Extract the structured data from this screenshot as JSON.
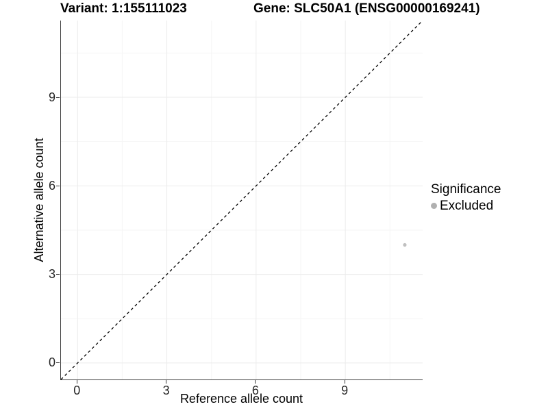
{
  "chart_data": {
    "type": "scatter",
    "titles": [
      "Variant: 1:155111023",
      "Gene: SLC50A1 (ENSG00000169241)"
    ],
    "xlabel": "Reference allele count",
    "ylabel": "Alternative allele count",
    "xlim": [
      -0.56,
      11.6
    ],
    "ylim": [
      -0.56,
      11.6
    ],
    "xticks": [
      0,
      3,
      6,
      9
    ],
    "yticks": [
      0,
      3,
      6,
      9
    ],
    "minor_gridlines": [
      1.5,
      4.5,
      7.5,
      10.5
    ],
    "grid": "major and minor gridlines, very light gray on white panel",
    "reference_line": {
      "type": "diagonal y=x",
      "slope": 1,
      "intercept": 0,
      "style": "dashed",
      "color": "#000000"
    },
    "series": [
      {
        "name": "Excluded",
        "color": "#c0c0c0",
        "points": [
          {
            "x": 11,
            "y": 4
          }
        ]
      }
    ],
    "legend": {
      "title": "Significance",
      "position": "right",
      "entries": [
        {
          "label": "Excluded",
          "color": "#b0b0b0"
        }
      ]
    }
  },
  "colors": {
    "background": "#ffffff",
    "axis_line": "#3c3c3c",
    "tick_mark": "#333333",
    "tick_label": "#262626",
    "grid_major": "#ebebeb",
    "grid_minor": "#f5f5f5",
    "diagonal_line": "#000000",
    "point": "#c0c0c0"
  }
}
